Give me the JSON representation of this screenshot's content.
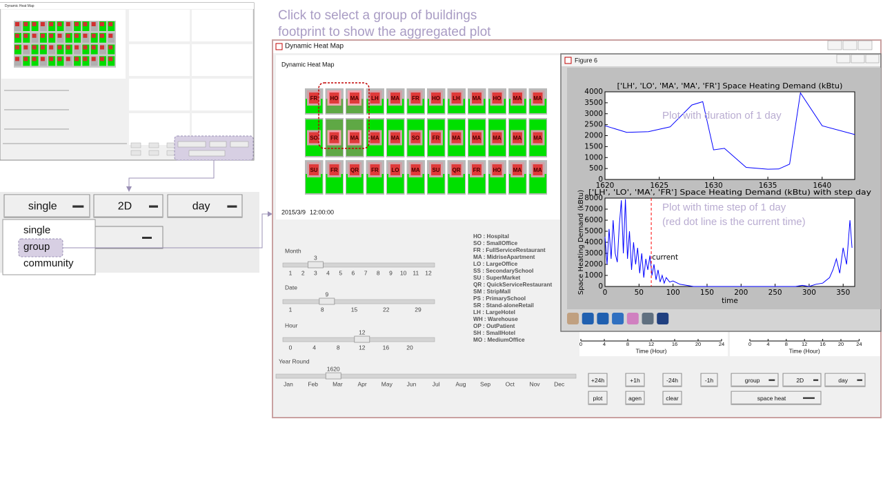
{
  "annotations": {
    "main": [
      "Click to select a group of buildings",
      "footprint to show the aggregated plot"
    ],
    "duration": "Plot with duration of 1 day",
    "step": [
      "Plot with time step of 1 day",
      "(red dot line is the current time)"
    ]
  },
  "thumbnail": {
    "title": "Dynamic Heat Map"
  },
  "zoom": {
    "buttons": [
      "single",
      "2D",
      "day"
    ],
    "menu": [
      "single",
      "group",
      "community"
    ]
  },
  "main_window": {
    "title": "Dynamic Heat Map",
    "panel_title": "Dynamic Heat Map",
    "date": "2015/3/9",
    "time": "12:00:00",
    "map": [
      [
        "FR",
        "HO",
        "MA",
        "LH",
        "MA",
        "FR",
        "HO",
        "LH",
        "MA",
        "HO",
        "MA",
        "MA"
      ],
      [
        "SO",
        "FR",
        "MA",
        "MA",
        "MA",
        "SO",
        "FR",
        "MA",
        "MA",
        "MA",
        "MA",
        "MA"
      ],
      [
        "SU",
        "FR",
        "QR",
        "FR",
        "LO",
        "MA",
        "SU",
        "QR",
        "FR",
        "HO",
        "MA",
        "MA"
      ]
    ],
    "sliders": [
      {
        "label": "Month",
        "value": 3,
        "ticks": [
          1,
          2,
          3,
          4,
          5,
          6,
          7,
          8,
          9,
          10,
          11,
          12
        ]
      },
      {
        "label": "Date",
        "value": 9,
        "ticks": [
          1,
          8,
          15,
          22,
          29
        ]
      },
      {
        "label": "Hour",
        "value": 12,
        "ticks": [
          0,
          4,
          8,
          12,
          16,
          20
        ]
      }
    ],
    "year_round": {
      "label": "Year Round",
      "value": 1620,
      "months": [
        "Jan",
        "Feb",
        "Mar",
        "Apr",
        "May",
        "Jun",
        "Jul",
        "Aug",
        "Sep",
        "Oct",
        "Nov",
        "Dec"
      ]
    },
    "legend": [
      "HO : Hospital",
      "SO : SmallOffice",
      "FR : FullServiceRestaurant",
      "MA : MidriseApartment",
      "LO : LargeOffice",
      "SS : SecondarySchool",
      "SU : SuperMarket",
      "QR : QuickServiceRestaurant",
      "SM : StripMall",
      "PS : PrimarySchool",
      "SR : Stand-aloneRetail",
      "LH : LargeHotel",
      "WH : Warehouse",
      "OP : OutPatient",
      "SH : SmallHotel",
      "MO : MediumOffice"
    ],
    "buttons": [
      "+24h",
      "+1h",
      "-24h",
      "-1h",
      "plot",
      "agen",
      "clear"
    ],
    "dropdowns": [
      "group",
      "2D",
      "day",
      "space heat"
    ],
    "hour_plots": [
      {
        "xlabel": "Time (Hour)",
        "xticks": [
          0,
          4,
          8,
          12,
          16,
          20,
          24
        ]
      },
      {
        "xlabel": "Time (Hour)",
        "xticks": [
          0,
          4,
          8,
          12,
          16,
          20,
          24
        ]
      }
    ]
  },
  "figure": {
    "title": "Figure 6"
  },
  "chart_data": [
    {
      "type": "line",
      "title": "['LH', 'LO', 'MA', 'MA', 'FR'] Space Heating Demand (kBtu)",
      "x": [
        1620,
        1622,
        1624,
        1626,
        1628,
        1629,
        1630,
        1631,
        1633,
        1635,
        1636,
        1637,
        1638,
        1640,
        1643
      ],
      "values": [
        2450,
        2150,
        2180,
        2400,
        3400,
        3550,
        1350,
        1420,
        550,
        470,
        480,
        700,
        3950,
        2450,
        2050
      ],
      "color": "#0000ff",
      "xlim": [
        1620,
        1643
      ],
      "ylim": [
        0,
        4000
      ],
      "xticks": [
        1620,
        1625,
        1630,
        1635,
        1640
      ],
      "yticks": [
        0,
        500,
        1000,
        1500,
        2000,
        2500,
        3000,
        3500,
        4000
      ]
    },
    {
      "type": "line",
      "title": "['LH', 'LO', 'MA', 'FR'] Space Heating Demand (kBtu) with step day",
      "xlabel": "time",
      "ylabel": "Space Heating Demand (kBtu)",
      "x": [
        0,
        3,
        6,
        9,
        12,
        15,
        18,
        21,
        24,
        27,
        30,
        33,
        36,
        39,
        42,
        45,
        48,
        51,
        54,
        57,
        60,
        63,
        66,
        69,
        72,
        75,
        78,
        81,
        84,
        87,
        90,
        95,
        100,
        110,
        120,
        130,
        150,
        200,
        250,
        280,
        290,
        300,
        310,
        320,
        330,
        335,
        340,
        345,
        350,
        355,
        360,
        363
      ],
      "values": [
        4500,
        2000,
        5200,
        2500,
        6000,
        3000,
        2200,
        5500,
        7800,
        3000,
        7900,
        2500,
        5000,
        1500,
        4000,
        2000,
        3500,
        1200,
        3000,
        800,
        2500,
        1500,
        2800,
        1000,
        2000,
        600,
        1500,
        400,
        1000,
        300,
        800,
        400,
        500,
        200,
        100,
        0,
        0,
        0,
        0,
        0,
        100,
        0,
        200,
        300,
        800,
        1500,
        2500,
        1200,
        3500,
        2000,
        6000,
        3500
      ],
      "color": "#0000ff",
      "xlim": [
        0,
        367
      ],
      "ylim": [
        0,
        8000
      ],
      "xticks": [
        0,
        50,
        100,
        150,
        200,
        250,
        300,
        350
      ],
      "yticks": [
        0,
        1000,
        2000,
        3000,
        4000,
        5000,
        6000,
        7000,
        8000
      ],
      "marker": {
        "x": 68,
        "label": "current",
        "color": "#ff0000"
      }
    }
  ]
}
